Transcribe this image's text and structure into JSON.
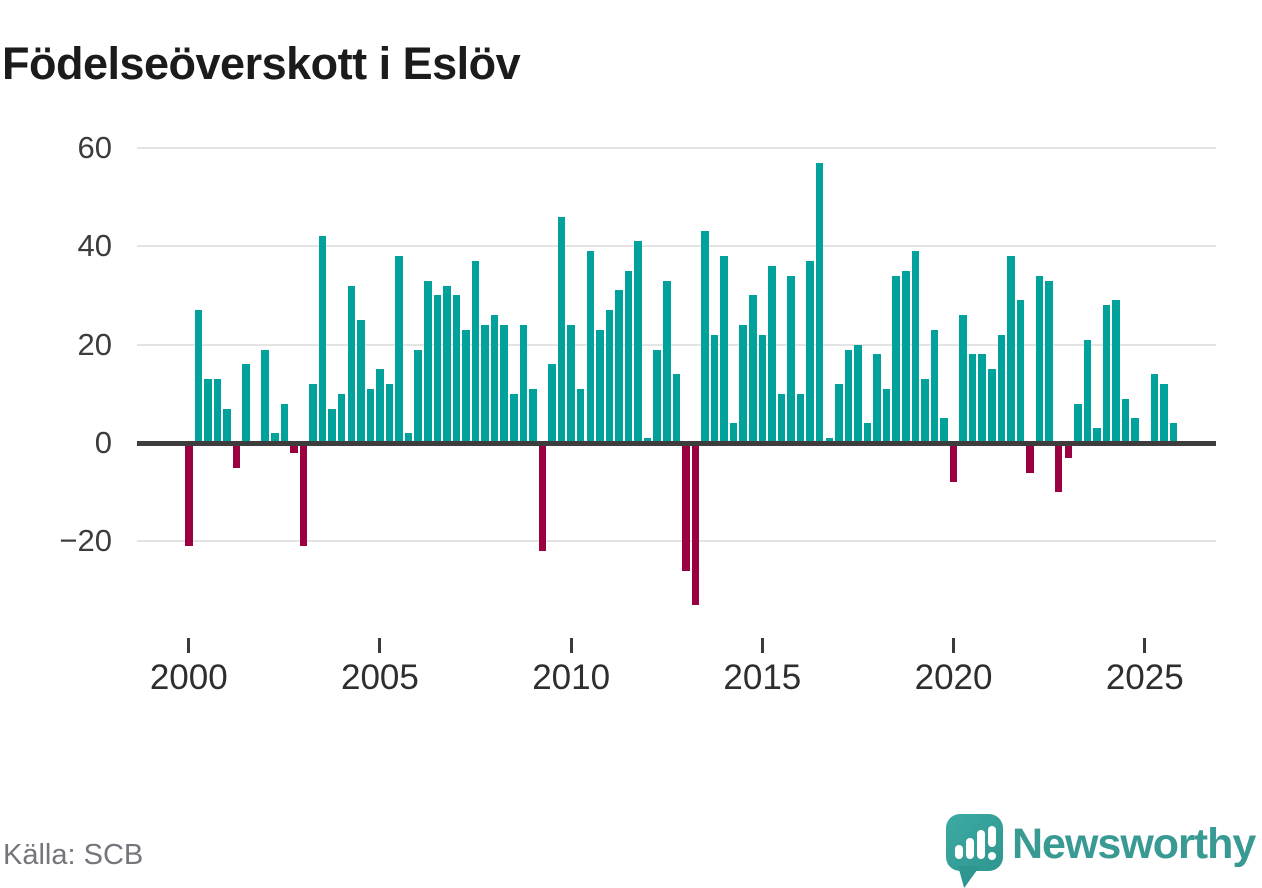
{
  "header": {
    "title": "Födelseöverskott i Eslöv"
  },
  "footer": {
    "source": "Källa: SCB",
    "brand": "Newsworthy"
  },
  "colors": {
    "positive_bar": "#00a29b",
    "negative_bar": "#9b0040",
    "axis": "#3d3d3d",
    "gridline": "#e4e4e4",
    "title_text": "#1b1b1b",
    "tick_label": "#3c3c3c",
    "source_text": "#75757d",
    "brand_teal": "#399a94"
  },
  "chart_data": {
    "type": "bar",
    "title": "Födelseöverskott i Eslöv",
    "x_unit": "quarter",
    "x_range": "2000 Q1 – 2025 Q4",
    "x_tick_labels": [
      "2000",
      "2005",
      "2010",
      "2015",
      "2020",
      "2025"
    ],
    "y_ticks": [
      60,
      40,
      20,
      0,
      -20
    ],
    "ylim": [
      -35,
      62
    ],
    "grid": true,
    "legend_position": "none",
    "series": [
      {
        "name": "Födelseöverskott",
        "by_year": [
          {
            "year": 2000,
            "values": [
              -21,
              27,
              13,
              13
            ]
          },
          {
            "year": 2001,
            "values": [
              7,
              -5,
              16,
              0
            ]
          },
          {
            "year": 2002,
            "values": [
              19,
              2,
              8,
              -2
            ]
          },
          {
            "year": 2003,
            "values": [
              -21,
              12,
              42,
              7
            ]
          },
          {
            "year": 2004,
            "values": [
              10,
              32,
              25,
              11
            ]
          },
          {
            "year": 2005,
            "values": [
              15,
              12,
              38,
              2
            ]
          },
          {
            "year": 2006,
            "values": [
              19,
              33,
              30,
              32
            ]
          },
          {
            "year": 2007,
            "values": [
              30,
              23,
              37,
              24
            ]
          },
          {
            "year": 2008,
            "values": [
              26,
              24,
              10,
              24
            ]
          },
          {
            "year": 2009,
            "values": [
              11,
              -22,
              16,
              46
            ]
          },
          {
            "year": 2010,
            "values": [
              24,
              11,
              39,
              23
            ]
          },
          {
            "year": 2011,
            "values": [
              27,
              31,
              35,
              41
            ]
          },
          {
            "year": 2012,
            "values": [
              1,
              19,
              33,
              14
            ]
          },
          {
            "year": 2013,
            "values": [
              -26,
              -33,
              43,
              22
            ]
          },
          {
            "year": 2014,
            "values": [
              38,
              4,
              24,
              30
            ]
          },
          {
            "year": 2015,
            "values": [
              22,
              36,
              10,
              34
            ]
          },
          {
            "year": 2016,
            "values": [
              10,
              37,
              57,
              1
            ]
          },
          {
            "year": 2017,
            "values": [
              12,
              19,
              20,
              4
            ]
          },
          {
            "year": 2018,
            "values": [
              18,
              11,
              34,
              35
            ]
          },
          {
            "year": 2019,
            "values": [
              39,
              13,
              23,
              5
            ]
          },
          {
            "year": 2020,
            "values": [
              -8,
              26,
              18,
              18
            ]
          },
          {
            "year": 2021,
            "values": [
              15,
              22,
              38,
              29
            ]
          },
          {
            "year": 2022,
            "values": [
              -6,
              34,
              33,
              -10
            ]
          },
          {
            "year": 2023,
            "values": [
              -3,
              8,
              21,
              3
            ]
          },
          {
            "year": 2024,
            "values": [
              28,
              29,
              9,
              5
            ]
          },
          {
            "year": 2025,
            "values": [
              0,
              14,
              12,
              4
            ]
          }
        ]
      }
    ]
  }
}
